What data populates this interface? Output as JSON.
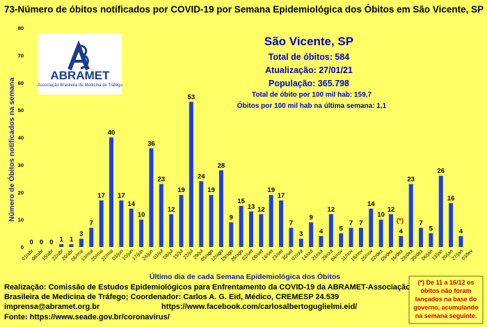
{
  "title": "73-Número de óbitos notificados por COVID-19 por Semana Epidemiológica dos Óbitos em São Vicente, SP",
  "logo": {
    "name": "ABRAMET",
    "subtitle": "Associação Brasileira de Medicina de Tráfego"
  },
  "info": {
    "city": "São Vicente, SP",
    "lines": [
      "Total de óbitos: 584",
      "Atualização: 27/01/21",
      "População: 365.798"
    ],
    "small_lines": [
      "Total de óbito por 100 mil hab: 159,7",
      "Óbitos por 100 mil hab na última semana: 1,1"
    ]
  },
  "note_marker": "(*)",
  "note": [
    "(*) De 11 a 16/12 os",
    "óbitos não foram",
    "lançados na base do",
    "governo, acumulando",
    "na semana seguinte."
  ],
  "footer": {
    "line1": "Realização: Comissão de Estudos Epidemiológicos para Enfrentamento da COVID-19 da ABRAMET-Associação",
    "line2": "Brasileira de Medicina de Tráfego; Coordenador: Carlos A. G. Eid, Médico, CREMESP 24.539",
    "email": "imprensa@abramet.org.br",
    "facebook": "https://www.facebook.com/carlosalbertoguglielmi.eid/",
    "source": "Fonte: https://www.seade.gov.br/coronavirus/"
  },
  "colors": {
    "background": "#ffff66",
    "bar": "#1f3fe0",
    "accent": "#0000cc"
  },
  "chart_data": {
    "type": "bar",
    "xlabel": "Último dia de cada Semana Epidemiológica dos Óbitos",
    "ylabel": "Número de Óbitos notificados na semana",
    "ylim": [
      0,
      80
    ],
    "yticks": [
      0,
      10,
      20,
      30,
      40,
      50,
      60,
      70,
      80
    ],
    "grid": false,
    "categories": [
      "01/abr",
      "08/abr",
      "15/abr",
      "22/abr",
      "29/abr",
      "06/mai",
      "13/mai",
      "20/mai",
      "27/mai",
      "03/jun",
      "10/jun",
      "17/jun",
      "24/jun",
      "01/jul",
      "08/jul",
      "15/jul",
      "22/jul",
      "29/jul",
      "05/ago",
      "12/ago",
      "19/ago",
      "26/ago",
      "02/set",
      "09/set",
      "16/set",
      "23/set",
      "30/set",
      "07/out",
      "14/out",
      "21/out",
      "28/out",
      "04/nov",
      "11/nov",
      "18/nov",
      "25/nov",
      "02/dez",
      "09/dez",
      "16/dez",
      "23/dez",
      "30/dez",
      "06/jan",
      "13/jan",
      "20/jan",
      "27/jan",
      "03/fev"
    ],
    "values": [
      0,
      0,
      0,
      1,
      1,
      3,
      7,
      17,
      40,
      17,
      14,
      10,
      36,
      23,
      12,
      19,
      53,
      24,
      19,
      28,
      9,
      15,
      13,
      12,
      19,
      17,
      7,
      3,
      9,
      4,
      12,
      5,
      7,
      7,
      14,
      10,
      12,
      4,
      23,
      7,
      5,
      26,
      16,
      4,
      null
    ]
  }
}
